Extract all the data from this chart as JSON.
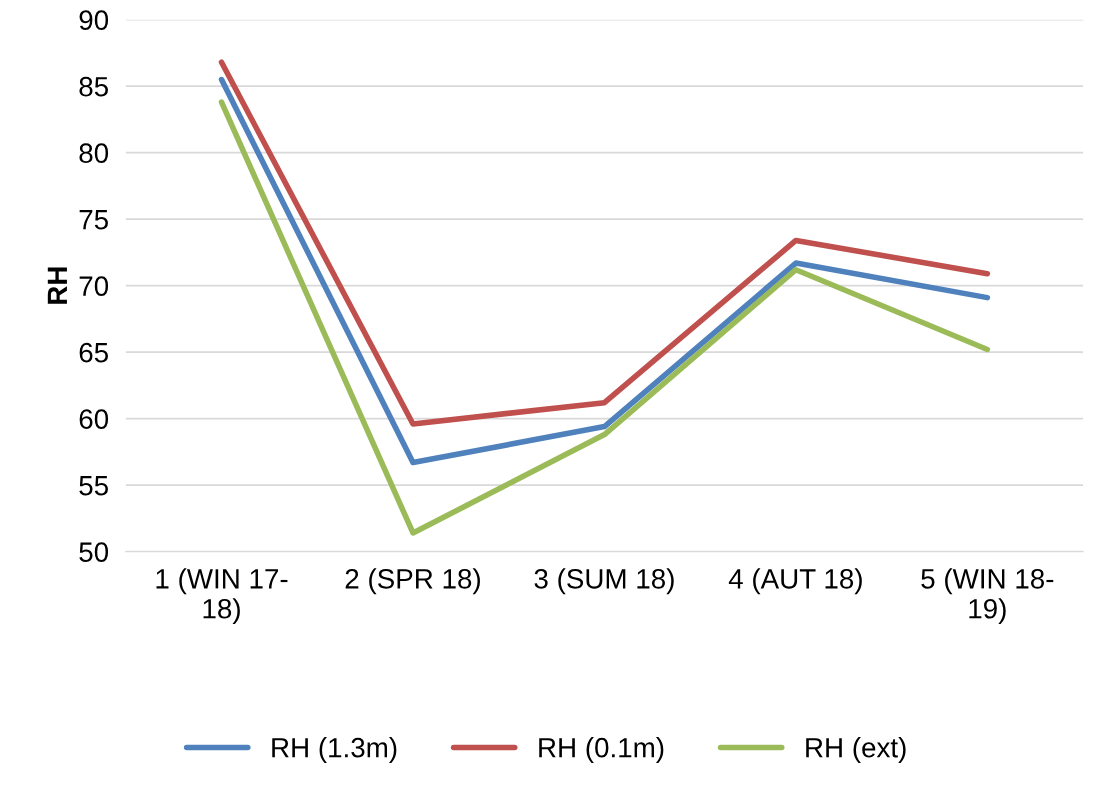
{
  "chart_data": {
    "type": "line",
    "ylabel": "RH",
    "categories": [
      "1 (WIN 17-18)",
      "2 (SPR 18)",
      "3 (SUM 18)",
      "4 (AUT 18)",
      "5 (WIN 18-19)"
    ],
    "series": [
      {
        "name": "RH (1.3m)",
        "color": "#4f81bd",
        "values": [
          85.5,
          56.7,
          59.4,
          71.7,
          69.1
        ]
      },
      {
        "name": "RH (0.1m)",
        "color": "#c0504d",
        "values": [
          86.8,
          59.6,
          61.2,
          73.4,
          70.9
        ]
      },
      {
        "name": "RH (ext)",
        "color": "#9bbb59",
        "values": [
          83.8,
          51.4,
          58.8,
          71.2,
          65.2
        ]
      }
    ],
    "ylim": [
      50,
      90
    ],
    "yticks": [
      50,
      55,
      60,
      65,
      70,
      75,
      80,
      85,
      90
    ],
    "grid": "y",
    "legend": "bottom",
    "marker": "none",
    "line_style": "solid"
  }
}
